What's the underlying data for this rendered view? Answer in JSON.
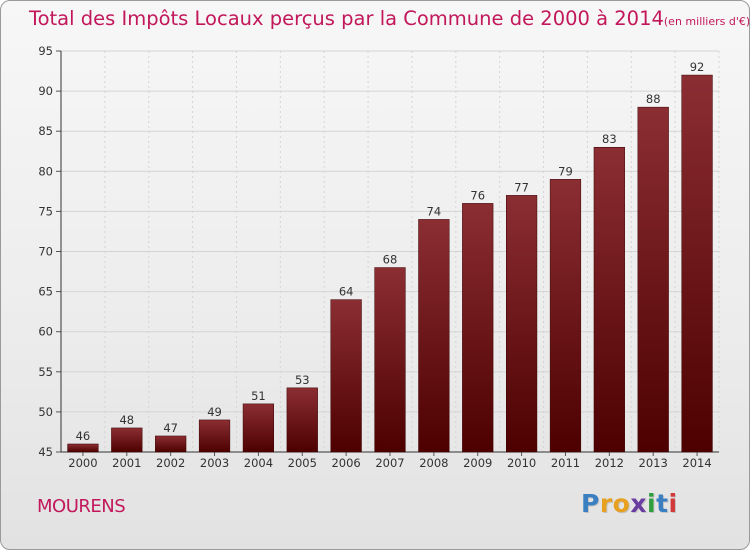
{
  "title": {
    "main": "Total des Impôts Locaux perçus par la Commune de 2000 à 2014",
    "unit": "(en milliers d'€)"
  },
  "commune": "MOURENS",
  "logo": {
    "letters": [
      "P",
      "r",
      "o",
      "x",
      "i",
      "t",
      "i"
    ],
    "colors": [
      "#3a7fc1",
      "#e8a020",
      "#e8a020",
      "#6a3ea1",
      "#2f9e3f",
      "#3a7fc1",
      "#d23a3a"
    ]
  },
  "colors": {
    "bar_top": "#8b2e33",
    "bar_bottom": "#4d0000",
    "title": "#c2185b",
    "grid": "#d4d4d4"
  },
  "chart_data": {
    "type": "bar",
    "categories": [
      "2000",
      "2001",
      "2002",
      "2003",
      "2004",
      "2005",
      "2006",
      "2007",
      "2008",
      "2009",
      "2010",
      "2011",
      "2012",
      "2013",
      "2014"
    ],
    "values": [
      46,
      48,
      47,
      49,
      51,
      53,
      64,
      68,
      74,
      76,
      77,
      79,
      83,
      88,
      92
    ],
    "yticks": [
      45,
      50,
      55,
      60,
      65,
      70,
      75,
      80,
      85,
      90,
      95
    ],
    "ylim": [
      45,
      95
    ],
    "grid": true,
    "title": "Total des Impôts Locaux perçus par la Commune de 2000 à 2014"
  }
}
